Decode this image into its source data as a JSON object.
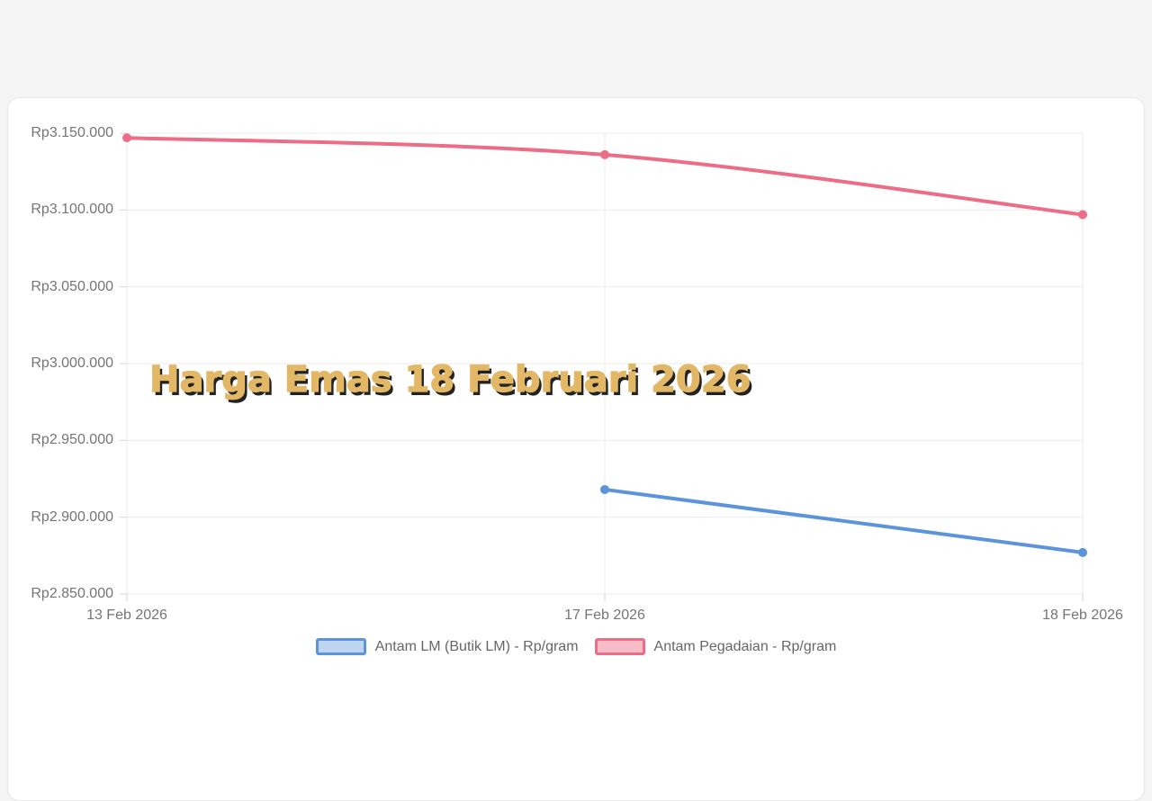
{
  "page": {
    "background": "#f5f5f6",
    "card_background": "#ffffff"
  },
  "watermark": {
    "text": "Harga Emas 18 Februari 2026",
    "color": "#e2b866",
    "shadow_color": "#101010"
  },
  "chart_data": {
    "type": "line",
    "title": "Harga Emas 18 Februari 2026",
    "categories": [
      "13 Feb 2026",
      "17 Feb 2026",
      "18 Feb 2026"
    ],
    "series": [
      {
        "name": "Antam LM (Butik LM) - Rp/gram",
        "values": [
          null,
          2918000,
          2877000
        ],
        "line_color": "#5b94da",
        "fill_color": "#bdd5f1"
      },
      {
        "name": "Antam Pegadaian - Rp/gram",
        "values": [
          3147000,
          3136000,
          3097000
        ],
        "line_color": "#ed6c86",
        "fill_color": "#f7bcc8"
      }
    ],
    "xlabel": "",
    "ylabel": "",
    "ylim": [
      2850000,
      3150000
    ],
    "y_tick_step": 50000,
    "y_tick_labels_desc": [
      "Rp3.150.000",
      "Rp3.100.000",
      "Rp3.050.000",
      "Rp3.000.000",
      "Rp2.950.000",
      "Rp2.900.000",
      "Rp2.850.000"
    ],
    "grid": true,
    "legend_position": "bottom",
    "colors": {
      "grid": "#ebebeb",
      "tick": "#d6d6d6",
      "axis_text": "#757575",
      "legend_text": "#666666"
    }
  }
}
